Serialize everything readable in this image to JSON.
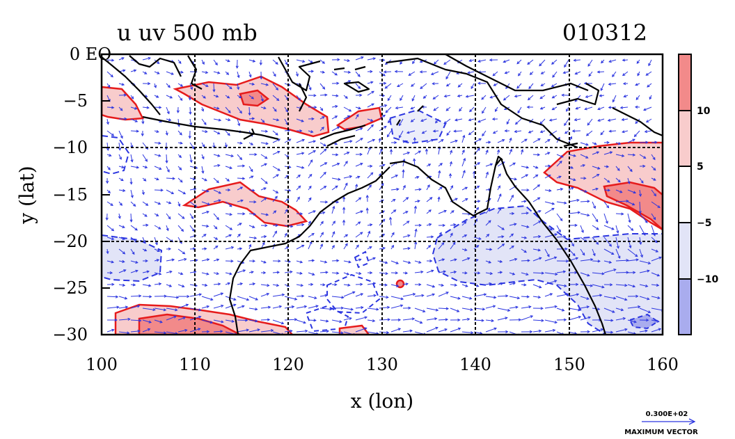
{
  "title": {
    "left": "u uv 500 mb",
    "right": "010312"
  },
  "axes": {
    "xlabel": "x (lon)",
    "ylabel": "y (lat)",
    "x_ticks": [
      "100",
      "110",
      "120",
      "130",
      "140",
      "150",
      "160"
    ],
    "y_ticks": [
      "0 EQ",
      "−5",
      "−10",
      "−15",
      "−20",
      "−25",
      "−30"
    ],
    "xlim": [
      100,
      160
    ],
    "ylim": [
      -30,
      0
    ]
  },
  "colorbar": {
    "labels": [
      "10",
      "5",
      "−5",
      "−10"
    ],
    "colors": [
      "#f28a8a",
      "#f8cccc",
      "#ffffff",
      "#e2e4f7",
      "#a9acee"
    ]
  },
  "vector_key": {
    "value": "0.300E+02",
    "label": "MAXIMUM VECTOR"
  },
  "colors": {
    "positive_contour": "#e61b1b",
    "negative_contour": "#2b35e0",
    "vector": "#2b35e0",
    "coast": "#000000",
    "grid": "#000000"
  },
  "chart_data": {
    "type": "heatmap",
    "title": "u uv 500 mb",
    "xlabel": "x (lon)",
    "ylabel": "y (lat)",
    "xlim": [
      100,
      160
    ],
    "ylim": [
      -30,
      0
    ],
    "contour_levels": [
      -10,
      -5,
      5,
      10
    ],
    "regions": [
      {
        "sign": "positive",
        "level": 5,
        "lon": [
          100,
          106
        ],
        "lat": [
          -7,
          -4
        ]
      },
      {
        "sign": "positive",
        "level": 5,
        "lon": [
          110,
          125
        ],
        "lat": [
          -9,
          -3
        ]
      },
      {
        "sign": "positive",
        "level": 5,
        "lon": [
          148,
          160
        ],
        "lat": [
          -19,
          -10
        ]
      },
      {
        "sign": "positive",
        "level": 10,
        "lon": [
          154,
          160
        ],
        "lat": [
          -18,
          -14
        ]
      },
      {
        "sign": "positive",
        "level": 5,
        "lon": [
          102,
          122
        ],
        "lat": [
          -30,
          -27
        ]
      },
      {
        "sign": "negative",
        "level": -5,
        "lon": [
          100,
          110
        ],
        "lat": [
          -26,
          -20
        ]
      },
      {
        "sign": "negative",
        "level": -5,
        "lon": [
          137,
          160
        ],
        "lat": [
          -30,
          -17
        ]
      }
    ]
  }
}
